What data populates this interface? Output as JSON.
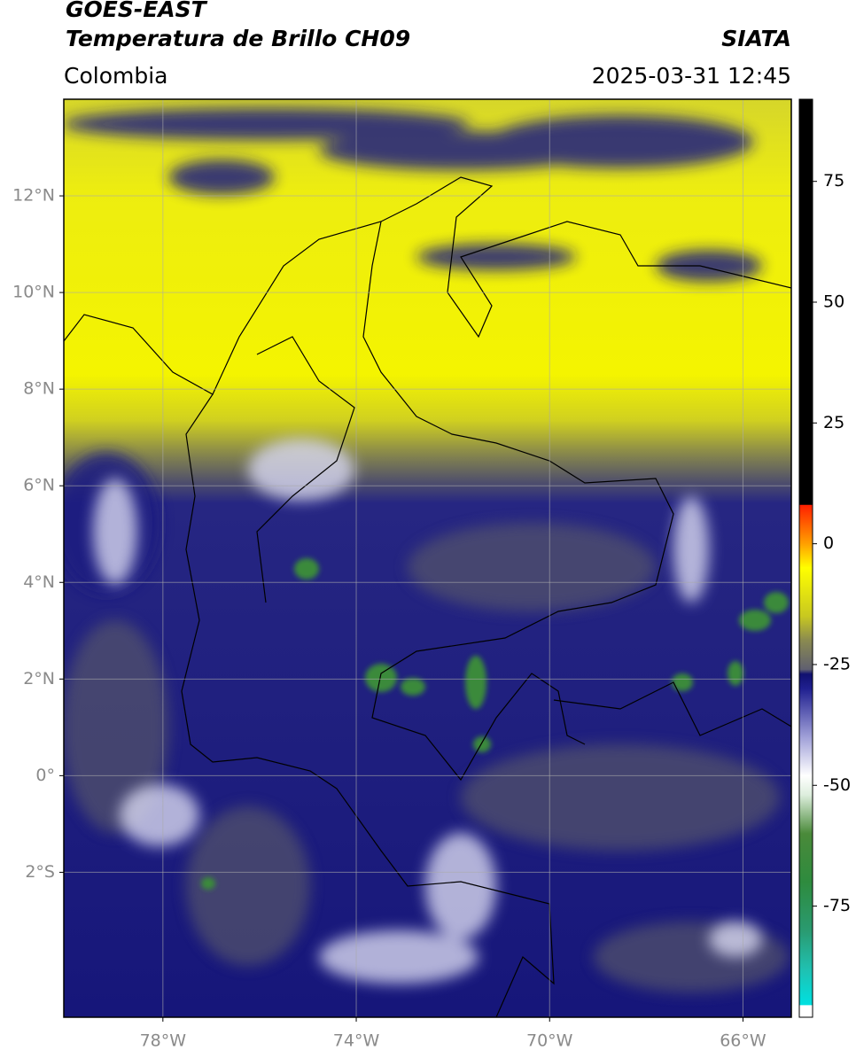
{
  "header": {
    "title": "GOES-EAST",
    "subtitle": "Temperatura de Brillo CH09",
    "source": "SIATA",
    "region": "Colombia",
    "timestamp": "2025-03-31 12:45"
  },
  "map": {
    "xlim": [
      -80.05,
      -65
    ],
    "ylim": [
      -5,
      14
    ],
    "xticks": [
      {
        "value": -78,
        "label": "78°W"
      },
      {
        "value": -74,
        "label": "74°W"
      },
      {
        "value": -70,
        "label": "70°W"
      },
      {
        "value": -66,
        "label": "66°W"
      }
    ],
    "yticks": [
      {
        "value": 12,
        "label": "12°N"
      },
      {
        "value": 10,
        "label": "10°N"
      },
      {
        "value": 8,
        "label": "8°N"
      },
      {
        "value": 6,
        "label": "6°N"
      },
      {
        "value": 4,
        "label": "4°N"
      },
      {
        "value": 2,
        "label": "2°N"
      },
      {
        "value": 0,
        "label": "0°"
      },
      {
        "value": -2,
        "label": "2°S"
      }
    ],
    "grid": true
  },
  "colorbar": {
    "lim": [
      -98,
      92
    ],
    "ticks": [
      75,
      50,
      25,
      0,
      -25,
      -50,
      -75
    ],
    "colormap": [
      {
        "value": -98,
        "color": "#ffffff"
      },
      {
        "value": -95.6,
        "color": "#ffffff"
      },
      {
        "value": -95.4,
        "color": "#00e0e0"
      },
      {
        "value": -88,
        "color": "#20c0b0"
      },
      {
        "value": -80,
        "color": "#2a9a70"
      },
      {
        "value": -70,
        "color": "#2e8b3e"
      },
      {
        "value": -60,
        "color": "#4a8a3a"
      },
      {
        "value": -52,
        "color": "#ddeedd"
      },
      {
        "value": -48,
        "color": "#ffffff"
      },
      {
        "value": -40,
        "color": "#a0a0d8"
      },
      {
        "value": -30,
        "color": "#202090"
      },
      {
        "value": -27,
        "color": "#101070"
      },
      {
        "value": -26,
        "color": "#606070"
      },
      {
        "value": -20,
        "color": "#8a8a50"
      },
      {
        "value": -15,
        "color": "#c8c820"
      },
      {
        "value": -5,
        "color": "#ffff00"
      },
      {
        "value": 0,
        "color": "#ffa000"
      },
      {
        "value": 8,
        "color": "#ff2000"
      },
      {
        "value": 8.1,
        "color": "#000000"
      },
      {
        "value": 92,
        "color": "#000000"
      }
    ]
  }
}
